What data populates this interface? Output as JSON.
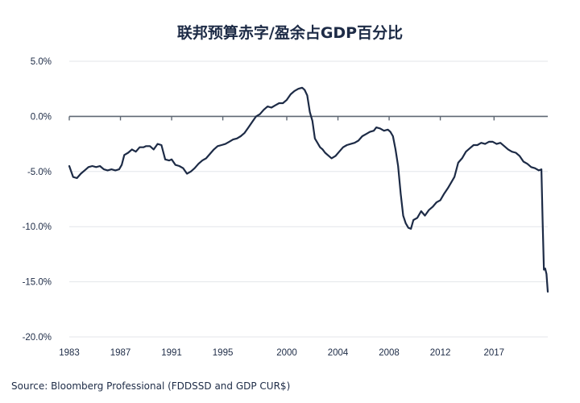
{
  "chart_data": {
    "type": "line",
    "title": "联邦预算赤字/盈余占GDP百分比",
    "source": "Source: Bloomberg Professional (FDDSSD and GDP CUR$)",
    "xlabel": "",
    "ylabel": "",
    "xlim": [
      1983,
      2020.4
    ],
    "ylim": [
      -20,
      5
    ],
    "y_ticks": [
      "5.0%",
      "0.0%",
      "-5.0%",
      "-10.0%",
      "-15.0%",
      "-20.0%"
    ],
    "y_tick_values": [
      5,
      0,
      -5,
      -10,
      -15,
      -20
    ],
    "x_ticks": [
      "1983",
      "1987",
      "1991",
      "1995",
      "2000",
      "2004",
      "2008",
      "2012",
      "2017"
    ],
    "x_tick_values": [
      1983,
      1987,
      1991,
      1995,
      2000,
      2004,
      2008,
      2012,
      2016.2
    ],
    "grid": "horizontal",
    "legend": "none",
    "line_color": "#1d2b46",
    "series": [
      {
        "name": "",
        "x": [
          1983.0,
          1983.3,
          1983.6,
          1983.9,
          1984.2,
          1984.5,
          1984.8,
          1985.1,
          1985.4,
          1985.7,
          1986.0,
          1986.3,
          1986.6,
          1986.9,
          1987.1,
          1987.3,
          1987.6,
          1987.9,
          1988.2,
          1988.5,
          1988.8,
          1989.0,
          1989.3,
          1989.6,
          1989.9,
          1990.2,
          1990.5,
          1990.8,
          1991.0,
          1991.3,
          1991.6,
          1991.9,
          1992.2,
          1992.5,
          1992.8,
          1993.1,
          1993.4,
          1993.7,
          1994.0,
          1994.3,
          1994.6,
          1994.9,
          1995.2,
          1995.5,
          1995.8,
          1996.1,
          1996.4,
          1996.7,
          1997.0,
          1997.3,
          1997.6,
          1997.9,
          1998.2,
          1998.5,
          1998.8,
          1999.1,
          1999.4,
          1999.7,
          2000.0,
          2000.3,
          2000.6,
          2000.9,
          2001.2,
          2001.4,
          2001.6,
          2001.8,
          2002.0,
          2002.2,
          2002.4,
          2002.6,
          2002.8,
          2003.0,
          2003.2,
          2003.5,
          2003.8,
          2004.1,
          2004.4,
          2004.7,
          2005.0,
          2005.3,
          2005.6,
          2005.9,
          2006.2,
          2006.5,
          2006.8,
          2007.0,
          2007.3,
          2007.6,
          2007.9,
          2008.1,
          2008.3,
          2008.5,
          2008.7,
          2008.9,
          2009.1,
          2009.3,
          2009.5,
          2009.7,
          2009.9,
          2010.2,
          2010.5,
          2010.8,
          2011.1,
          2011.4,
          2011.7,
          2012.0,
          2012.3,
          2012.6,
          2012.9,
          2013.1,
          2013.4,
          2013.7,
          2014.0,
          2014.3,
          2014.6,
          2014.9,
          2015.2,
          2015.5,
          2015.8,
          2016.1,
          2016.4,
          2016.7,
          2017.0,
          2017.3,
          2017.6,
          2017.9,
          2018.2,
          2018.5,
          2018.8,
          2019.1,
          2019.4,
          2019.7,
          2019.9,
          2020.0,
          2020.1,
          2020.2,
          2020.3,
          2020.4
        ],
        "values": [
          -4.5,
          -5.5,
          -5.6,
          -5.2,
          -4.9,
          -4.6,
          -4.5,
          -4.6,
          -4.5,
          -4.8,
          -4.9,
          -4.8,
          -4.9,
          -4.8,
          -4.4,
          -3.5,
          -3.3,
          -3.0,
          -3.2,
          -2.8,
          -2.8,
          -2.7,
          -2.7,
          -3.0,
          -2.5,
          -2.6,
          -3.9,
          -4.0,
          -3.9,
          -4.4,
          -4.5,
          -4.7,
          -5.2,
          -5.0,
          -4.7,
          -4.3,
          -4.0,
          -3.8,
          -3.4,
          -3.0,
          -2.7,
          -2.6,
          -2.5,
          -2.3,
          -2.1,
          -2.0,
          -1.8,
          -1.5,
          -1.0,
          -0.5,
          0.0,
          0.2,
          0.6,
          0.9,
          0.8,
          1.0,
          1.2,
          1.2,
          1.5,
          2.0,
          2.3,
          2.5,
          2.6,
          2.4,
          1.9,
          0.4,
          -0.4,
          -2.0,
          -2.4,
          -2.8,
          -3.0,
          -3.3,
          -3.5,
          -3.8,
          -3.6,
          -3.2,
          -2.8,
          -2.6,
          -2.5,
          -2.4,
          -2.2,
          -1.8,
          -1.6,
          -1.4,
          -1.3,
          -1.0,
          -1.1,
          -1.3,
          -1.2,
          -1.4,
          -1.8,
          -3.0,
          -4.5,
          -7.0,
          -9.0,
          -9.7,
          -10.1,
          -10.2,
          -9.4,
          -9.2,
          -8.6,
          -9.0,
          -8.5,
          -8.2,
          -7.8,
          -7.6,
          -7.0,
          -6.5,
          -5.9,
          -5.5,
          -4.2,
          -3.8,
          -3.2,
          -2.9,
          -2.6,
          -2.6,
          -2.4,
          -2.5,
          -2.3,
          -2.3,
          -2.5,
          -2.4,
          -2.7,
          -3.0,
          -3.2,
          -3.3,
          -3.6,
          -4.1,
          -4.3,
          -4.6,
          -4.7,
          -4.9,
          -4.8,
          -9.5,
          -13.9,
          -13.8,
          -14.3,
          -15.9
        ]
      }
    ]
  }
}
